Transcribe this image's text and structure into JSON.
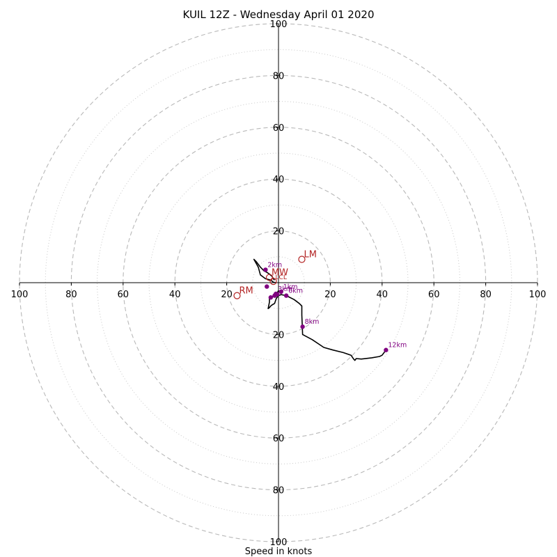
{
  "chart_data": {
    "type": "scatter",
    "title": "KUIL 12Z - Wednesday April 01 2020",
    "xlabel": "Speed in knots",
    "range": [
      -100,
      100
    ],
    "ring_major": [
      20,
      40,
      60,
      80,
      100
    ],
    "ring_minor": [
      10,
      30,
      50,
      70,
      90
    ],
    "tick_labels": [
      "100",
      "80",
      "60",
      "40",
      "20",
      "20",
      "40",
      "60",
      "80",
      "100"
    ],
    "tick_values": [
      -100,
      -80,
      -60,
      -40,
      -20,
      20,
      40,
      60,
      80,
      100
    ],
    "hodograph": [
      [
        0.0,
        -3.0
      ],
      [
        -0.5,
        -4.0
      ],
      [
        -2.5,
        -5.5
      ],
      [
        -3.5,
        -6.2
      ],
      [
        -3.5,
        -7.5
      ],
      [
        -4.0,
        -10.0
      ],
      [
        -3.5,
        -9.6
      ],
      [
        -3.0,
        -9.0
      ],
      [
        -2.5,
        -8.6
      ],
      [
        -1.5,
        -8.0
      ],
      [
        -0.8,
        -6.0
      ],
      [
        0.0,
        -5.0
      ],
      [
        0.5,
        -4.8
      ],
      [
        1.0,
        -4.6
      ],
      [
        2.0,
        -4.8
      ],
      [
        3.0,
        -5.0
      ],
      [
        6.0,
        -6.5
      ],
      [
        8.0,
        -8.0
      ],
      [
        9.0,
        -9.0
      ],
      [
        9.0,
        -12.5
      ],
      [
        9.2,
        -17.0
      ],
      [
        9.3,
        -20.0
      ],
      [
        13.0,
        -22.0
      ],
      [
        17.5,
        -25.0
      ],
      [
        21.0,
        -26.0
      ],
      [
        25.0,
        -27.0
      ],
      [
        28.0,
        -28.0
      ],
      [
        29.0,
        -29.5
      ],
      [
        29.5,
        -30.0
      ],
      [
        30.0,
        -29.3
      ],
      [
        32.0,
        -29.5
      ],
      [
        36.0,
        -29.0
      ],
      [
        39.0,
        -28.5
      ],
      [
        40.0,
        -28.0
      ],
      [
        41.5,
        -26.0
      ]
    ],
    "hodograph2": [
      [
        -1.0,
        0.0
      ],
      [
        -2.0,
        0.2
      ],
      [
        -3.0,
        1.0
      ],
      [
        -5.0,
        1.5
      ],
      [
        -7.0,
        3.0
      ],
      [
        -7.8,
        6.0
      ],
      [
        -9.5,
        9.0
      ],
      [
        -8.5,
        8.0
      ],
      [
        -7.0,
        6.0
      ],
      [
        -5.5,
        4.5
      ],
      [
        -4.5,
        4.0
      ],
      [
        -3.5,
        3.3
      ],
      [
        -2.5,
        2.5
      ],
      [
        -2.0,
        1.5
      ],
      [
        -1.5,
        1.0
      ]
    ],
    "height_markers": [
      {
        "label": "1km",
        "u": 1.0,
        "v": -3.5
      },
      {
        "label": "2km",
        "u": -5.0,
        "v": 5.0
      },
      {
        "label": "3km",
        "u": -1.0,
        "v": -4.3
      },
      {
        "label": "6km",
        "u": 3.0,
        "v": -5.0
      },
      {
        "label": "8km",
        "u": 9.3,
        "v": -17.0
      },
      {
        "label": "12km",
        "u": 41.5,
        "v": -26.0
      }
    ],
    "extra_points": [
      {
        "u": -4.5,
        "v": -1.5
      },
      {
        "u": -3.0,
        "v": -5.7
      },
      {
        "u": -1.5,
        "v": -5.0
      },
      {
        "u": -0.5,
        "v": -4.5
      }
    ],
    "motion_markers": [
      {
        "label": "LM",
        "u": 9.0,
        "v": 9.0
      },
      {
        "label": "RM",
        "u": -16.0,
        "v": -5.0
      },
      {
        "label": "MW",
        "u": -3.5,
        "v": 2.0
      },
      {
        "label": "LCL",
        "u": -2.0,
        "v": 0.5
      }
    ],
    "colors": {
      "hodograph": "#000000",
      "height_marker": "#800080",
      "motion_marker": "#b22222",
      "major_ring": "#b8b8b8",
      "minor_ring": "#c8c8c8",
      "axis": "#000000"
    }
  }
}
